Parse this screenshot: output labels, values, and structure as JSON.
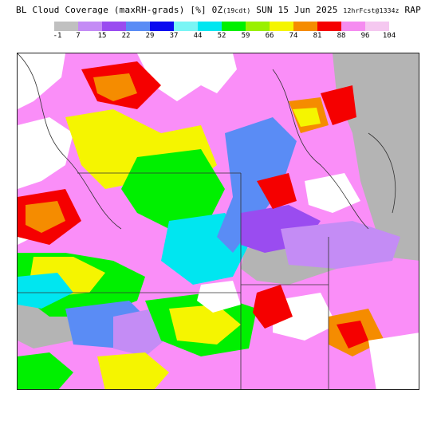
{
  "header": {
    "title_prefix": "BL Cloud Coverage (maxRH-grads) [%] 0Z",
    "title_small_1": "(19cdt)",
    "title_mid": " SUN 15 Jun 2025 ",
    "title_small_2": "12hrFcst@1334z",
    "title_suffix": " RAP"
  },
  "legend": {
    "colors": [
      "#c0c0c0",
      "#c48cf5",
      "#9a4cf0",
      "#5a8cf5",
      "#0a0af0",
      "#7af5f5",
      "#00e6f0",
      "#00f000",
      "#9af000",
      "#f5f500",
      "#f58c00",
      "#f50000",
      "#f58cf0",
      "#f5c8f0"
    ],
    "labels": [
      "-1",
      "7",
      "15",
      "22",
      "29",
      "37",
      "44",
      "52",
      "59",
      "66",
      "74",
      "81",
      "88",
      "96",
      "104"
    ]
  },
  "map": {
    "land_fill": "#fa8ef8",
    "no_data_fill": "#b4b4b4",
    "region_fills": [
      "#f5f500",
      "#00f000",
      "#00e6f0",
      "#5a8cf5",
      "#9a4cf0",
      "#c48cf5",
      "#f50000",
      "#f58c00",
      "#ffffff",
      "#0a0af0",
      "#9af000"
    ]
  }
}
